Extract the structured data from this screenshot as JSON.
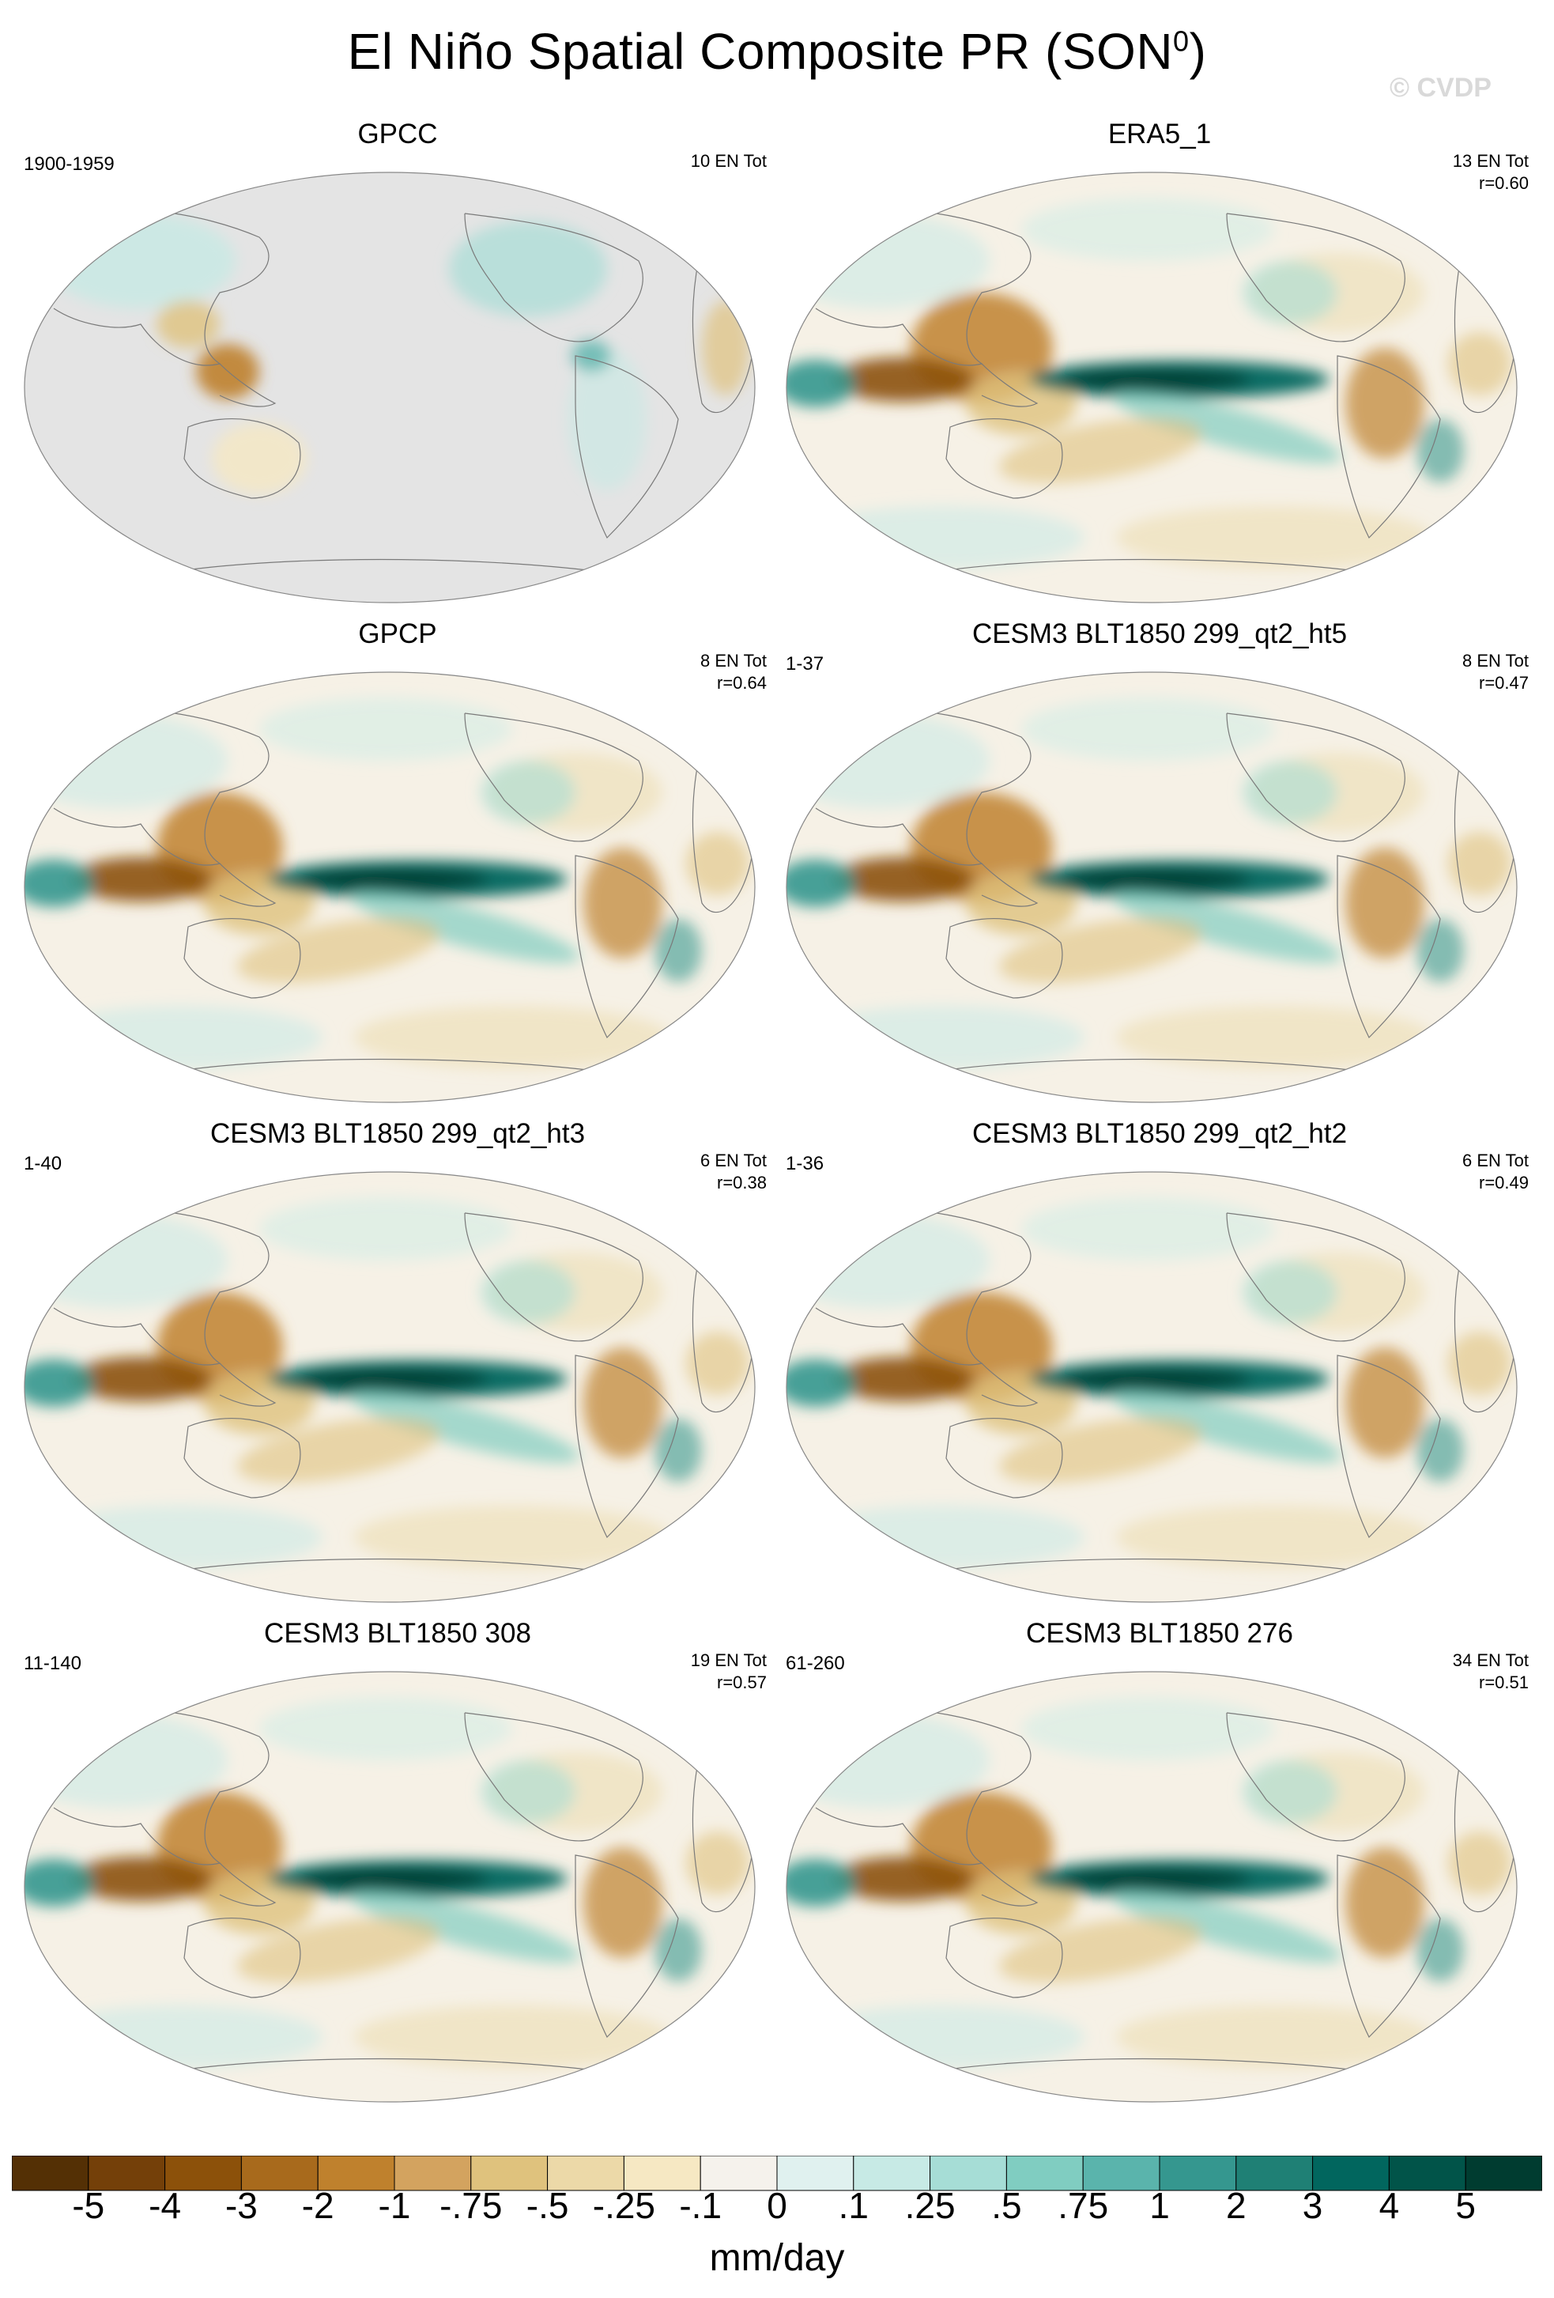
{
  "figure": {
    "title": "El Niño Spatial Composite PR (SON",
    "title_superscript": "0",
    "title_close": ")",
    "watermark": "© CVDP"
  },
  "panels": [
    {
      "name": "GPCC",
      "years": "1900-1959",
      "events": "10 EN Tot",
      "r": "",
      "masked_ocean": true
    },
    {
      "name": "ERA5_1",
      "years": "",
      "events": "13 EN Tot",
      "r": "r=0.60",
      "masked_ocean": false
    },
    {
      "name": "GPCP",
      "years": "",
      "events": "8 EN Tot",
      "r": "r=0.64",
      "masked_ocean": false
    },
    {
      "name": "CESM3 BLT1850 299_qt2_ht5",
      "years": "1-37",
      "events": "8 EN Tot",
      "r": "r=0.47",
      "masked_ocean": false
    },
    {
      "name": "CESM3 BLT1850 299_qt2_ht3",
      "years": "1-40",
      "events": "6 EN Tot",
      "r": "r=0.38",
      "masked_ocean": false
    },
    {
      "name": "CESM3 BLT1850 299_qt2_ht2",
      "years": "1-36",
      "events": "6 EN Tot",
      "r": "r=0.49",
      "masked_ocean": false
    },
    {
      "name": "CESM3 BLT1850 308",
      "years": "11-140",
      "events": "19 EN Tot",
      "r": "r=0.57",
      "masked_ocean": false
    },
    {
      "name": "CESM3 BLT1850 276",
      "years": "61-260",
      "events": "34 EN Tot",
      "r": "r=0.51",
      "masked_ocean": false
    }
  ],
  "colorbar": {
    "labels": [
      "-5",
      "-4",
      "-3",
      "-2",
      "-1",
      "-.75",
      "-.5",
      "-.25",
      "-.1",
      "0",
      ".1",
      ".25",
      ".5",
      ".75",
      "1",
      "2",
      "3",
      "4",
      "5"
    ],
    "colors": [
      "#543005",
      "#744009",
      "#8c510a",
      "#a86a1c",
      "#bf812d",
      "#d3a35f",
      "#dfc27d",
      "#ecd9a8",
      "#f6e8c3",
      "#f5f2ec",
      "#e0f1ef",
      "#c7eae5",
      "#a6ddd6",
      "#80cdc1",
      "#5ab4ac",
      "#35978f",
      "#1f8075",
      "#01665e",
      "#015449",
      "#003c30"
    ],
    "units": "mm/day"
  }
}
